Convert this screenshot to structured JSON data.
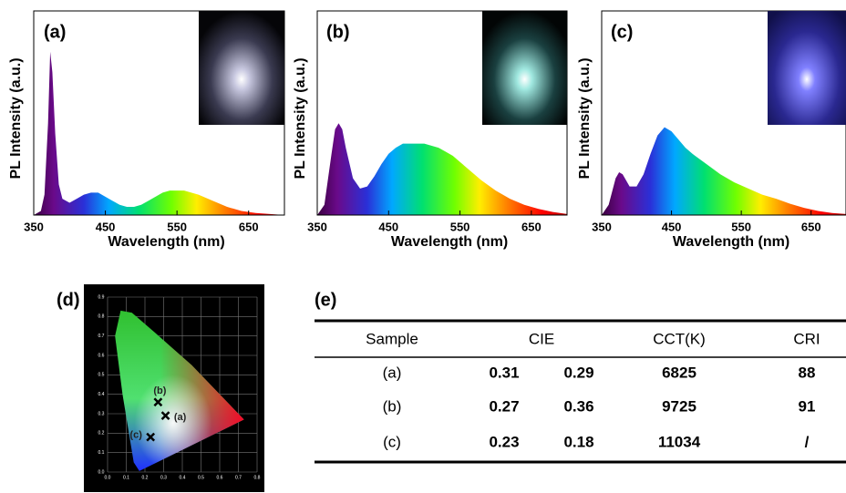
{
  "chart_data": [
    {
      "type": "area",
      "panel_label": "(a)",
      "xlabel": "Wavelength (nm)",
      "ylabel": "PL Intensity (a.u.)",
      "x": [
        350,
        360,
        365,
        370,
        373,
        376,
        380,
        385,
        390,
        400,
        410,
        420,
        430,
        440,
        450,
        460,
        470,
        480,
        490,
        500,
        510,
        520,
        530,
        540,
        550,
        560,
        570,
        580,
        600,
        620,
        640,
        660,
        680,
        700
      ],
      "values": [
        0,
        0.02,
        0.1,
        0.45,
        0.8,
        0.7,
        0.4,
        0.15,
        0.08,
        0.06,
        0.08,
        0.1,
        0.11,
        0.11,
        0.09,
        0.07,
        0.05,
        0.04,
        0.04,
        0.05,
        0.07,
        0.09,
        0.11,
        0.12,
        0.12,
        0.12,
        0.11,
        0.1,
        0.07,
        0.04,
        0.02,
        0.01,
        0.005,
        0
      ],
      "xlim": [
        350,
        700
      ],
      "xticks": [
        350,
        450,
        550,
        650
      ],
      "ylim": [
        0,
        1
      ]
    },
    {
      "type": "area",
      "panel_label": "(b)",
      "xlabel": "Wavelength (nm)",
      "ylabel": "PL Intensity (a.u.)",
      "x": [
        350,
        360,
        370,
        375,
        380,
        385,
        390,
        400,
        410,
        420,
        430,
        440,
        450,
        460,
        470,
        480,
        490,
        500,
        510,
        520,
        530,
        540,
        550,
        560,
        580,
        600,
        620,
        640,
        660,
        680,
        700
      ],
      "values": [
        0,
        0.05,
        0.3,
        0.42,
        0.45,
        0.42,
        0.33,
        0.18,
        0.13,
        0.14,
        0.19,
        0.25,
        0.3,
        0.33,
        0.35,
        0.35,
        0.35,
        0.35,
        0.34,
        0.33,
        0.31,
        0.29,
        0.26,
        0.23,
        0.17,
        0.12,
        0.08,
        0.05,
        0.03,
        0.015,
        0.005
      ],
      "xlim": [
        350,
        700
      ],
      "xticks": [
        350,
        450,
        550,
        650
      ],
      "ylim": [
        0,
        1
      ]
    },
    {
      "type": "area",
      "panel_label": "(c)",
      "xlabel": "Wavelength (nm)",
      "ylabel": "PL Intensity (a.u.)",
      "x": [
        350,
        360,
        370,
        375,
        380,
        390,
        400,
        410,
        420,
        430,
        440,
        450,
        460,
        470,
        480,
        500,
        520,
        540,
        560,
        580,
        600,
        620,
        640,
        660,
        680,
        700
      ],
      "values": [
        0,
        0.05,
        0.18,
        0.21,
        0.2,
        0.14,
        0.14,
        0.2,
        0.3,
        0.39,
        0.43,
        0.41,
        0.37,
        0.33,
        0.3,
        0.25,
        0.2,
        0.16,
        0.13,
        0.1,
        0.08,
        0.055,
        0.035,
        0.02,
        0.01,
        0.005
      ],
      "xlim": [
        350,
        700
      ],
      "xticks": [
        350,
        450,
        550,
        650
      ],
      "ylim": [
        0,
        1
      ]
    },
    {
      "type": "scatter",
      "panel_label": "(d)",
      "x": [
        0.31,
        0.27,
        0.23
      ],
      "values": [
        0.29,
        0.36,
        0.18
      ],
      "point_labels": [
        "(a)",
        "(b)",
        "(c)"
      ],
      "xlim": [
        0,
        0.8
      ],
      "ylim": [
        0,
        0.9
      ],
      "xticks": [
        {
          "value": 0,
          "label": "0.0"
        },
        0.1,
        0.2,
        0.3,
        0.4,
        0.5,
        0.6,
        0.7,
        0.8
      ],
      "yticks": [
        {
          "value": 0,
          "label": "0.0"
        },
        0.1,
        0.2,
        0.3,
        0.4,
        0.5,
        0.6,
        0.7,
        0.8,
        0.9
      ],
      "grid": true
    }
  ],
  "table": {
    "title": "(e)",
    "header": [
      "Sample",
      "CIE",
      "CCT(K)",
      "CRI"
    ],
    "rows": [
      [
        "(a)",
        0.31,
        0.29,
        6825,
        88
      ],
      [
        "(b)",
        0.27,
        0.36,
        9725,
        91
      ],
      [
        "(c)",
        0.23,
        0.18,
        11034,
        "/"
      ]
    ]
  }
}
